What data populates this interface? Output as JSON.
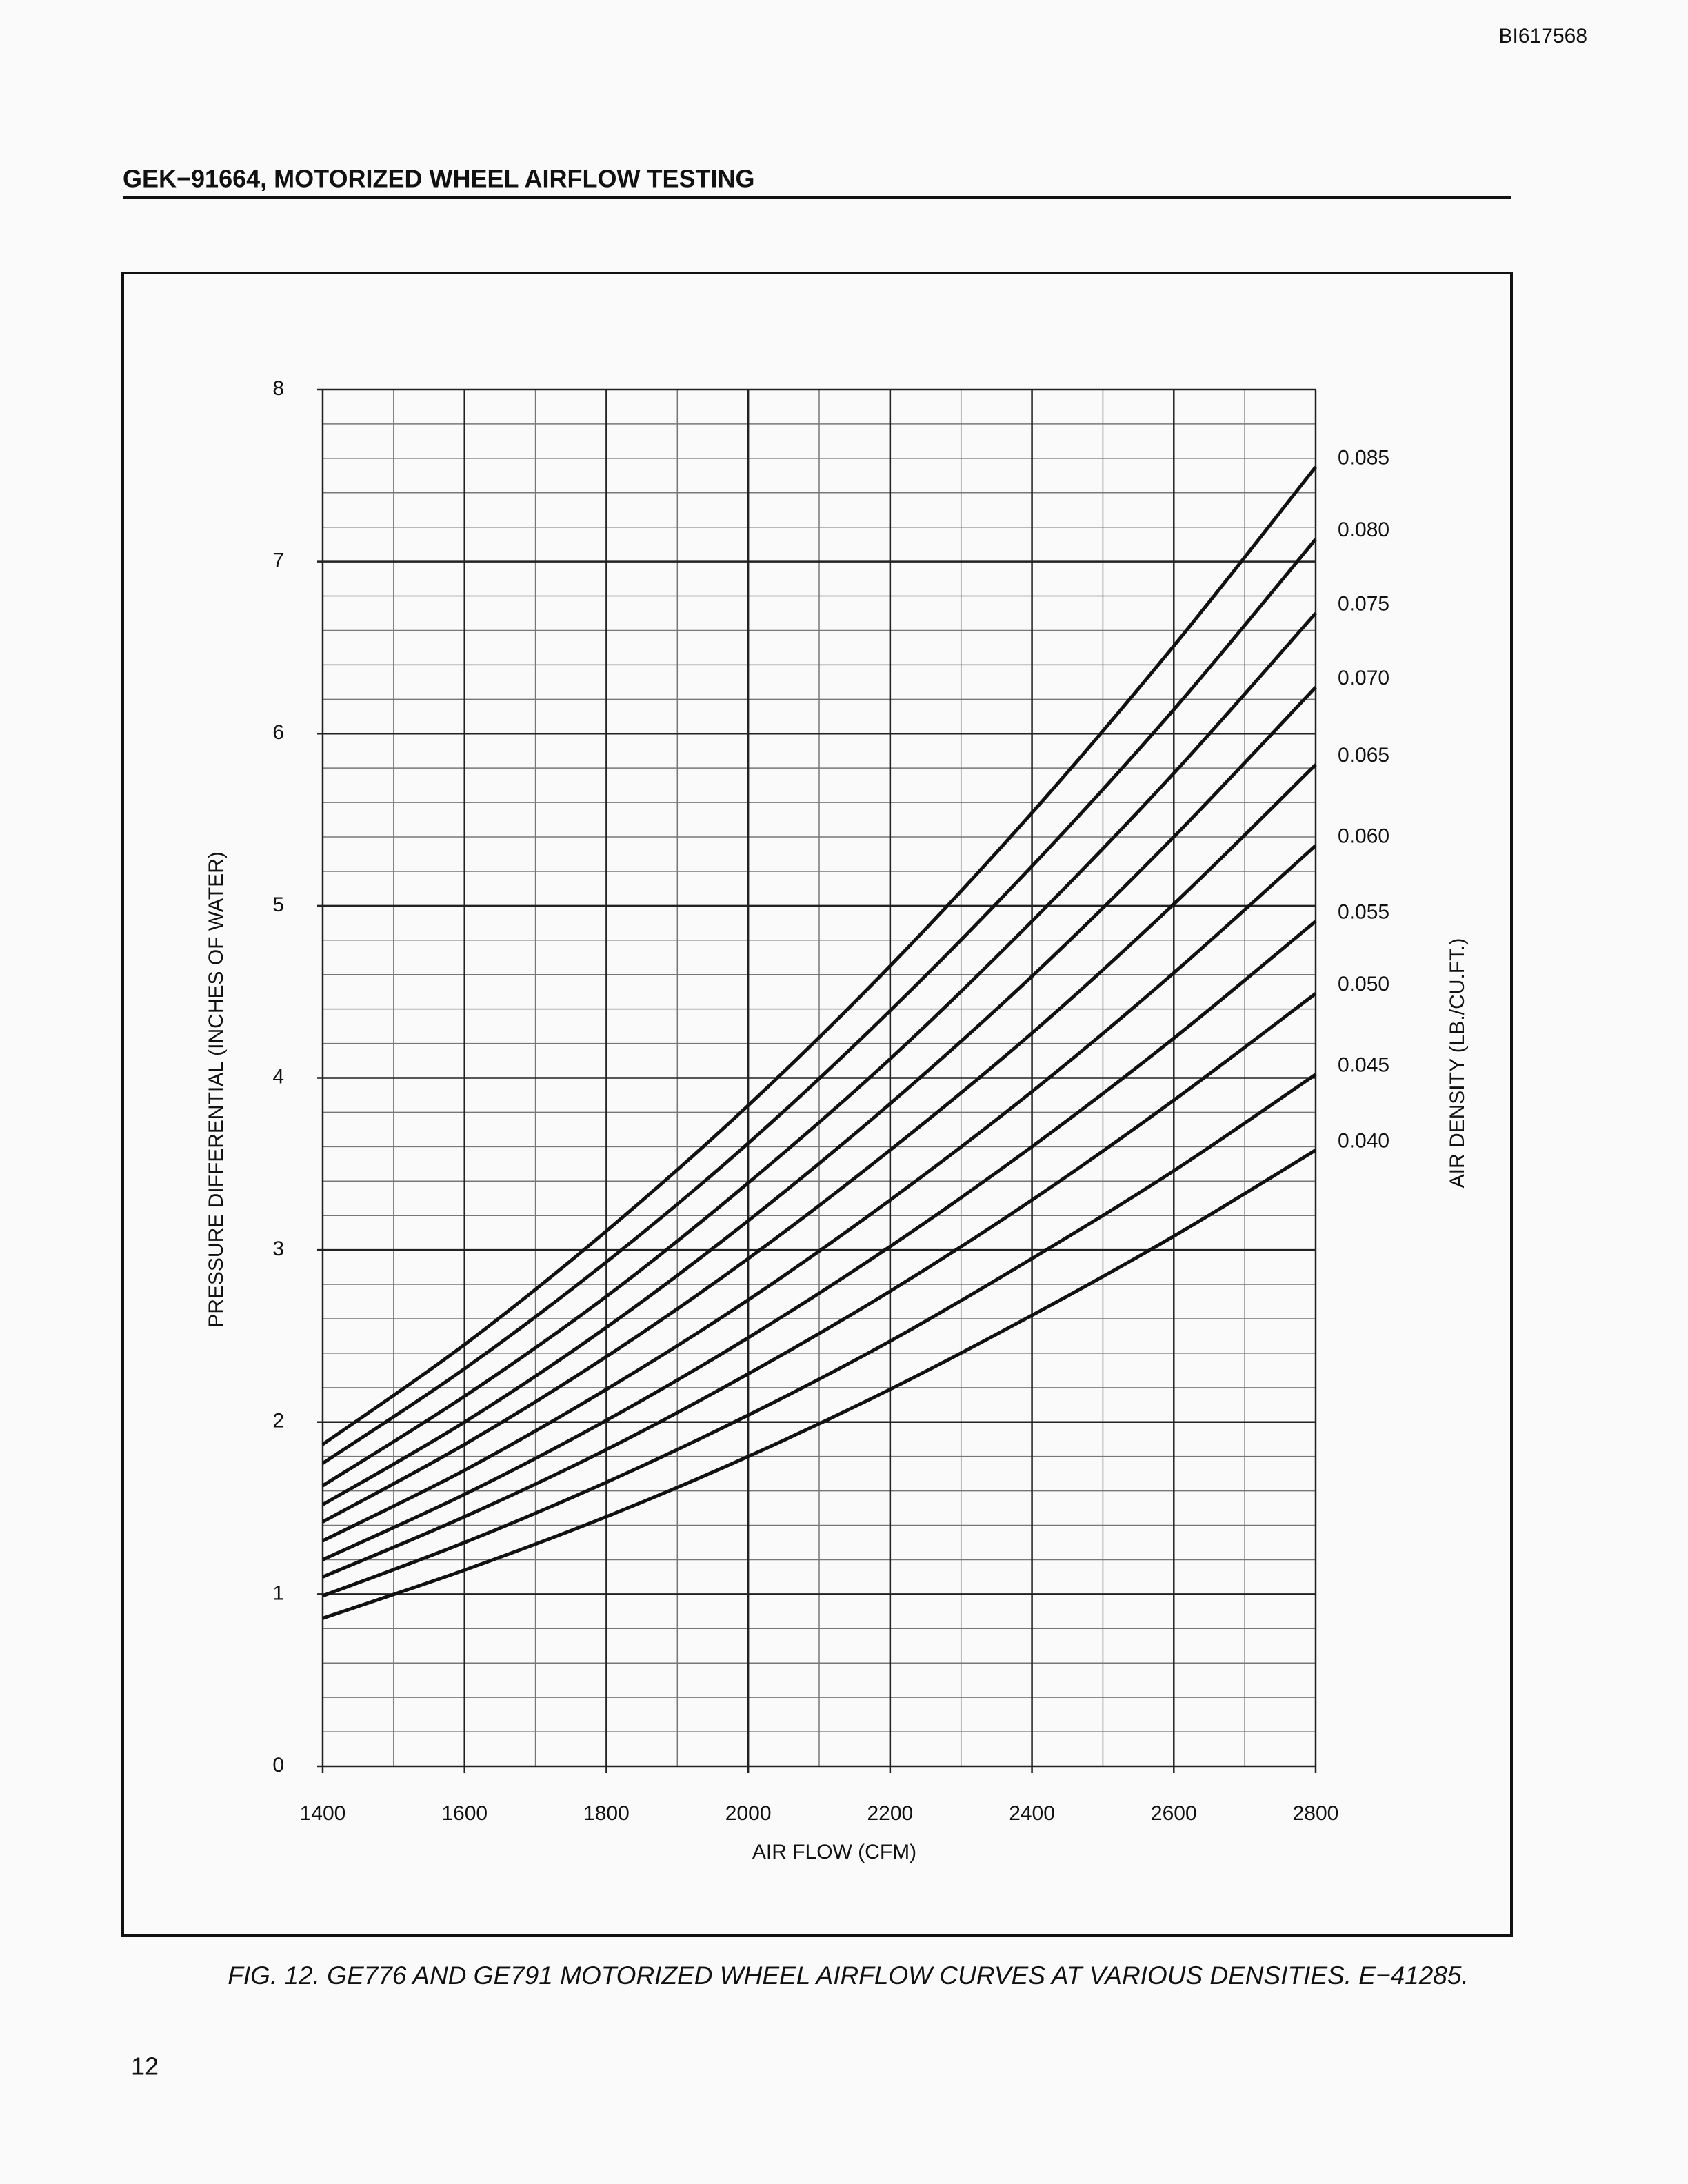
{
  "header": {
    "doc_id": "BI617568",
    "title": "GEK−91664, MOTORIZED WHEEL AIRFLOW TESTING"
  },
  "chart_data": {
    "type": "line",
    "x_label": "AIR FLOW (CFM)",
    "y_label": "PRESSURE DIFFERENTIAL (INCHES OF WATER)",
    "legend_title": "AIR DENSITY (LB./CU.FT.)",
    "x": [
      1400,
      1600,
      1800,
      2000,
      2200,
      2400,
      2600,
      2800
    ],
    "xlim": [
      1400,
      2800
    ],
    "xticks": [
      1400,
      1600,
      1800,
      2000,
      2200,
      2400,
      2600,
      2800
    ],
    "ylim": [
      0,
      8
    ],
    "yticks": [
      0,
      1,
      2,
      3,
      4,
      5,
      6,
      7,
      8
    ],
    "grid": true,
    "minor_grid": {
      "x": 2,
      "y": 5
    },
    "series": [
      {
        "name": "0.085",
        "color": "#111111",
        "values": [
          1.87,
          2.45,
          3.11,
          3.84,
          4.65,
          5.54,
          6.51,
          7.55
        ]
      },
      {
        "name": "0.080",
        "color": "#111111",
        "values": [
          1.76,
          2.31,
          2.93,
          3.62,
          4.39,
          5.23,
          6.14,
          7.13
        ]
      },
      {
        "name": "0.075",
        "color": "#111111",
        "values": [
          1.63,
          2.15,
          2.73,
          3.39,
          4.11,
          4.91,
          5.77,
          6.7
        ]
      },
      {
        "name": "0.070",
        "color": "#111111",
        "values": [
          1.52,
          2.0,
          2.55,
          3.17,
          3.85,
          4.59,
          5.4,
          6.27
        ]
      },
      {
        "name": "0.065",
        "color": "#111111",
        "values": [
          1.42,
          1.87,
          2.38,
          2.95,
          3.58,
          4.26,
          5.01,
          5.82
        ]
      },
      {
        "name": "0.060",
        "color": "#111111",
        "values": [
          1.31,
          1.72,
          2.19,
          2.71,
          3.29,
          3.92,
          4.61,
          5.35
        ]
      },
      {
        "name": "0.055",
        "color": "#111111",
        "values": [
          1.2,
          1.58,
          2.01,
          2.49,
          3.02,
          3.6,
          4.23,
          4.91
        ]
      },
      {
        "name": "0.050",
        "color": "#111111",
        "values": [
          1.1,
          1.45,
          1.84,
          2.28,
          2.76,
          3.29,
          3.87,
          4.49
        ]
      },
      {
        "name": "0.045",
        "color": "#111111",
        "values": [
          0.99,
          1.3,
          1.65,
          2.04,
          2.47,
          2.95,
          3.46,
          4.02
        ]
      },
      {
        "name": "0.040",
        "color": "#111111",
        "values": [
          0.86,
          1.14,
          1.45,
          1.8,
          2.19,
          2.62,
          3.08,
          3.58
        ]
      }
    ]
  },
  "caption": "FIG. 12. GE776 AND GE791 MOTORIZED WHEEL AIRFLOW CURVES AT VARIOUS DENSITIES. E−41285.",
  "page_number": "12"
}
